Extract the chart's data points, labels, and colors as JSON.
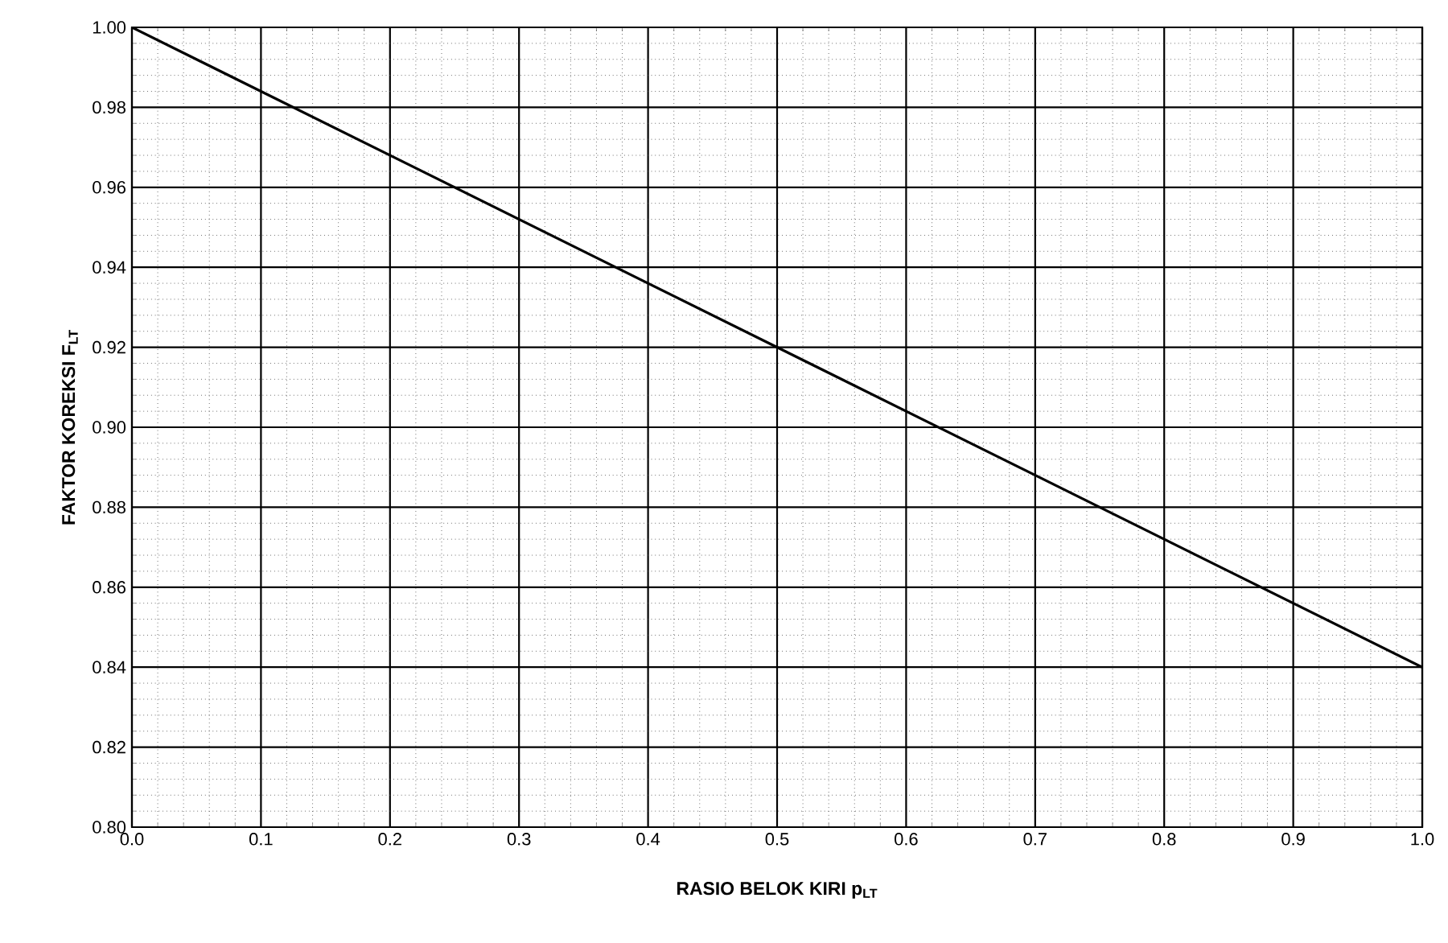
{
  "chart_data": {
    "type": "line",
    "xlabel": "RASIO BELOK KIRI p$_{LT}$",
    "ylabel": "FAKTOR KOREKSI F$_{LT}$",
    "x": [
      0.0,
      1.0
    ],
    "series": [
      {
        "color": "#000000",
        "values": [
          1.0,
          0.84
        ]
      }
    ],
    "xlim": [
      0.0,
      1.0
    ],
    "ylim": [
      0.8,
      1.0
    ],
    "xticks": [
      {
        "value": 0.0,
        "label": "0.0"
      },
      0.1,
      0.2,
      0.3,
      0.4,
      0.5,
      0.6,
      0.7,
      0.8,
      0.9,
      {
        "value": 1.0,
        "label": "1.0"
      }
    ],
    "yticks": [
      {
        "value": 0.8,
        "label": "0.80"
      },
      0.82,
      0.84,
      0.86,
      0.88,
      {
        "value": 0.9,
        "label": "0.90"
      },
      0.92,
      0.94,
      0.96,
      0.98,
      {
        "value": 1.0,
        "label": "1.00"
      }
    ],
    "grid": true,
    "marker": "none",
    "line_style": "solid"
  }
}
